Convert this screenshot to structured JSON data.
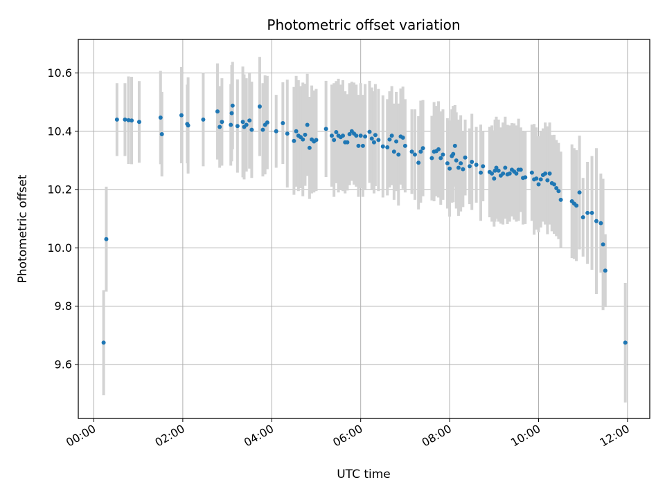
{
  "chart_data": {
    "type": "scatter",
    "title": "Photometric offset variation",
    "xlabel": "UTC time",
    "ylabel": "Photometric offset",
    "x_unit": "hours",
    "xlim": [
      -0.35,
      12.5
    ],
    "ylim": [
      9.415,
      10.715
    ],
    "x_ticks": [
      {
        "value": 0,
        "label": "00:00"
      },
      {
        "value": 2,
        "label": "02:00"
      },
      {
        "value": 4,
        "label": "04:00"
      },
      {
        "value": 6,
        "label": "06:00"
      },
      {
        "value": 8,
        "label": "08:00"
      },
      {
        "value": 10,
        "label": "10:00"
      },
      {
        "value": 12,
        "label": "12:00"
      }
    ],
    "y_ticks": [
      {
        "value": 9.6,
        "label": "9.6"
      },
      {
        "value": 9.8,
        "label": "9.8"
      },
      {
        "value": 10.0,
        "label": "10.0"
      },
      {
        "value": 10.2,
        "label": "10.2"
      },
      {
        "value": 10.4,
        "label": "10.4"
      },
      {
        "value": 10.6,
        "label": "10.6"
      }
    ],
    "grid": true,
    "colors": {
      "points": "#1f77b4",
      "error_bars": "#d3d3d3",
      "grid": "#b0b0b0"
    },
    "series": [
      {
        "name": "offset",
        "points": [
          [
            0.22,
            9.675,
            0.18
          ],
          [
            0.28,
            10.03,
            0.18
          ],
          [
            0.52,
            10.44,
            0.125
          ],
          [
            0.7,
            10.44,
            0.125
          ],
          [
            0.78,
            10.438,
            0.15
          ],
          [
            0.85,
            10.437,
            0.15
          ],
          [
            1.02,
            10.432,
            0.14
          ],
          [
            1.5,
            10.447,
            0.16
          ],
          [
            1.53,
            10.39,
            0.145
          ],
          [
            1.97,
            10.455,
            0.165
          ],
          [
            2.1,
            10.425,
            0.135
          ],
          [
            2.12,
            10.42,
            0.165
          ],
          [
            2.46,
            10.44,
            0.16
          ],
          [
            2.78,
            10.468,
            0.165
          ],
          [
            2.83,
            10.415,
            0.14
          ],
          [
            2.88,
            10.432,
            0.15
          ],
          [
            3.08,
            10.422,
            0.14
          ],
          [
            3.1,
            10.462,
            0.165
          ],
          [
            3.12,
            10.488,
            0.15
          ],
          [
            3.23,
            10.418,
            0.16
          ],
          [
            3.35,
            10.432,
            0.19
          ],
          [
            3.38,
            10.415,
            0.18
          ],
          [
            3.43,
            10.422,
            0.16
          ],
          [
            3.5,
            10.437,
            0.165
          ],
          [
            3.55,
            10.405,
            0.165
          ],
          [
            3.73,
            10.485,
            0.17
          ],
          [
            3.8,
            10.405,
            0.16
          ],
          [
            3.85,
            10.422,
            0.17
          ],
          [
            3.9,
            10.43,
            0.16
          ],
          [
            4.1,
            10.4,
            0.125
          ],
          [
            4.25,
            10.428,
            0.14
          ],
          [
            4.35,
            10.392,
            0.185
          ],
          [
            4.5,
            10.367,
            0.185
          ],
          [
            4.55,
            10.4,
            0.19
          ],
          [
            4.6,
            10.385,
            0.19
          ],
          [
            4.65,
            10.38,
            0.175
          ],
          [
            4.7,
            10.372,
            0.195
          ],
          [
            4.75,
            10.388,
            0.175
          ],
          [
            4.8,
            10.422,
            0.175
          ],
          [
            4.85,
            10.343,
            0.175
          ],
          [
            4.9,
            10.372,
            0.185
          ],
          [
            4.95,
            10.365,
            0.175
          ],
          [
            5.0,
            10.37,
            0.175
          ],
          [
            5.22,
            10.408,
            0.165
          ],
          [
            5.35,
            10.385,
            0.175
          ],
          [
            5.4,
            10.37,
            0.195
          ],
          [
            5.45,
            10.397,
            0.175
          ],
          [
            5.5,
            10.385,
            0.195
          ],
          [
            5.55,
            10.38,
            0.18
          ],
          [
            5.6,
            10.385,
            0.19
          ],
          [
            5.65,
            10.362,
            0.175
          ],
          [
            5.7,
            10.362,
            0.165
          ],
          [
            5.75,
            10.39,
            0.175
          ],
          [
            5.8,
            10.4,
            0.17
          ],
          [
            5.85,
            10.392,
            0.175
          ],
          [
            5.9,
            10.385,
            0.175
          ],
          [
            5.95,
            10.35,
            0.175
          ],
          [
            6.0,
            10.385,
            0.18
          ],
          [
            6.05,
            10.35,
            0.175
          ],
          [
            6.1,
            10.382,
            0.18
          ],
          [
            6.2,
            10.398,
            0.175
          ],
          [
            6.25,
            10.375,
            0.175
          ],
          [
            6.3,
            10.362,
            0.175
          ],
          [
            6.33,
            10.387,
            0.175
          ],
          [
            6.4,
            10.37,
            0.175
          ],
          [
            6.5,
            10.348,
            0.175
          ],
          [
            6.6,
            10.345,
            0.165
          ],
          [
            6.65,
            10.372,
            0.165
          ],
          [
            6.7,
            10.385,
            0.17
          ],
          [
            6.75,
            10.33,
            0.165
          ],
          [
            6.8,
            10.365,
            0.17
          ],
          [
            6.85,
            10.32,
            0.175
          ],
          [
            6.9,
            10.382,
            0.165
          ],
          [
            6.95,
            10.378,
            0.175
          ],
          [
            7.0,
            10.35,
            0.16
          ],
          [
            7.15,
            10.33,
            0.145
          ],
          [
            7.22,
            10.32,
            0.155
          ],
          [
            7.3,
            10.292,
            0.16
          ],
          [
            7.35,
            10.33,
            0.175
          ],
          [
            7.4,
            10.342,
            0.165
          ],
          [
            7.6,
            10.308,
            0.145
          ],
          [
            7.65,
            10.33,
            0.17
          ],
          [
            7.7,
            10.332,
            0.155
          ],
          [
            7.75,
            10.338,
            0.165
          ],
          [
            7.8,
            10.308,
            0.16
          ],
          [
            7.85,
            10.32,
            0.155
          ],
          [
            7.95,
            10.29,
            0.155
          ],
          [
            8.0,
            10.272,
            0.165
          ],
          [
            8.05,
            10.315,
            0.16
          ],
          [
            8.08,
            10.322,
            0.165
          ],
          [
            8.12,
            10.35,
            0.14
          ],
          [
            8.15,
            10.3,
            0.165
          ],
          [
            8.2,
            10.275,
            0.165
          ],
          [
            8.25,
            10.29,
            0.165
          ],
          [
            8.3,
            10.27,
            0.13
          ],
          [
            8.35,
            10.31,
            0.13
          ],
          [
            8.45,
            10.28,
            0.13
          ],
          [
            8.5,
            10.295,
            0.165
          ],
          [
            8.6,
            10.285,
            0.13
          ],
          [
            8.7,
            10.258,
            0.165
          ],
          [
            8.75,
            10.28,
            0.12
          ],
          [
            8.9,
            10.26,
            0.155
          ],
          [
            8.95,
            10.255,
            0.165
          ],
          [
            9.0,
            10.238,
            0.165
          ],
          [
            9.02,
            10.265,
            0.175
          ],
          [
            9.05,
            10.275,
            0.175
          ],
          [
            9.1,
            10.265,
            0.175
          ],
          [
            9.15,
            10.248,
            0.165
          ],
          [
            9.2,
            10.255,
            0.175
          ],
          [
            9.25,
            10.275,
            0.175
          ],
          [
            9.3,
            10.252,
            0.17
          ],
          [
            9.35,
            10.255,
            0.165
          ],
          [
            9.4,
            10.268,
            0.16
          ],
          [
            9.45,
            10.262,
            0.165
          ],
          [
            9.5,
            10.255,
            0.165
          ],
          [
            9.55,
            10.268,
            0.175
          ],
          [
            9.6,
            10.268,
            0.145
          ],
          [
            9.65,
            10.24,
            0.16
          ],
          [
            9.7,
            10.242,
            0.16
          ],
          [
            9.85,
            10.258,
            0.165
          ],
          [
            9.9,
            10.235,
            0.19
          ],
          [
            9.95,
            10.238,
            0.175
          ],
          [
            10.0,
            10.218,
            0.165
          ],
          [
            10.05,
            10.235,
            0.165
          ],
          [
            10.1,
            10.25,
            0.16
          ],
          [
            10.15,
            10.255,
            0.175
          ],
          [
            10.2,
            10.232,
            0.185
          ],
          [
            10.25,
            10.255,
            0.175
          ],
          [
            10.3,
            10.222,
            0.165
          ],
          [
            10.35,
            10.218,
            0.17
          ],
          [
            10.4,
            10.205,
            0.165
          ],
          [
            10.45,
            10.195,
            0.165
          ],
          [
            10.5,
            10.165,
            0.165
          ],
          [
            10.75,
            10.16,
            0.195
          ],
          [
            10.8,
            10.152,
            0.19
          ],
          [
            10.85,
            10.145,
            0.19
          ],
          [
            10.92,
            10.19,
            0.195
          ],
          [
            11.0,
            10.105,
            0.135
          ],
          [
            11.1,
            10.12,
            0.175
          ],
          [
            11.2,
            10.12,
            0.195
          ],
          [
            11.3,
            10.092,
            0.25
          ],
          [
            11.4,
            10.085,
            0.17
          ],
          [
            11.45,
            10.012,
            0.225
          ],
          [
            11.5,
            9.922,
            0.125
          ],
          [
            11.95,
            9.675,
            0.205
          ]
        ]
      }
    ]
  }
}
